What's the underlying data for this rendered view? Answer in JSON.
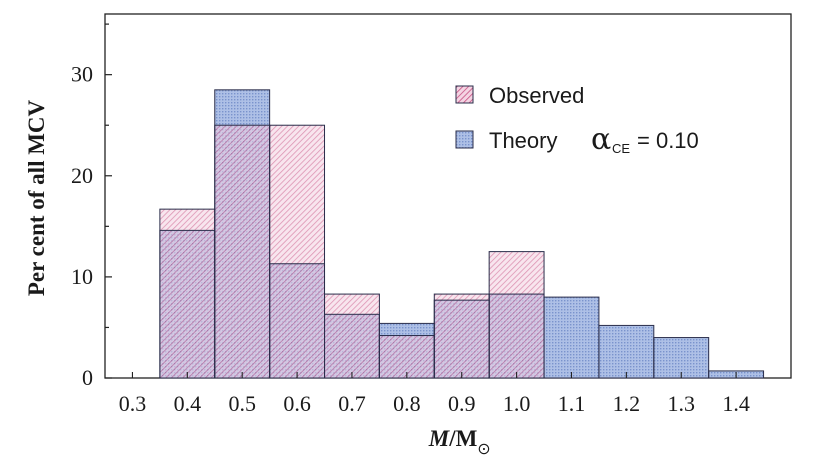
{
  "chart_data": {
    "type": "bar",
    "xlabel_italic": "M",
    "xlabel_rest": "/M",
    "xlabel_sun": "⊙",
    "ylabel": "Per cent of all MCV",
    "ylim": [
      0,
      36
    ],
    "yticks": [
      0,
      10,
      20,
      30
    ],
    "xlim": [
      0.25,
      1.5
    ],
    "xticks": [
      "0.3",
      "0.4",
      "0.5",
      "0.6",
      "0.7",
      "0.8",
      "0.9",
      "1.0",
      "1.1",
      "1.2",
      "1.3",
      "1.4"
    ],
    "bin_width": 0.1,
    "bin_centers": [
      0.4,
      0.5,
      0.6,
      0.7,
      0.8,
      0.9,
      1.0,
      1.1,
      1.2,
      1.3,
      1.4
    ],
    "series": [
      {
        "name": "Observed",
        "color": "#c03b73",
        "values": [
          16.7,
          25.0,
          25.0,
          8.3,
          4.2,
          8.3,
          12.5,
          0,
          0,
          0,
          0
        ]
      },
      {
        "name": "Theory",
        "color": "#7c9ad0",
        "values": [
          14.6,
          28.5,
          11.3,
          6.3,
          5.4,
          7.7,
          8.3,
          8.0,
          5.2,
          4.0,
          0.7
        ]
      }
    ],
    "legend": {
      "placement": "top-right",
      "observed_label": "Observed",
      "theory_label": "Theory",
      "alpha_symbol": "α",
      "alpha_subscript": "CE",
      "alpha_value": "= 0.10"
    },
    "grid": false
  }
}
